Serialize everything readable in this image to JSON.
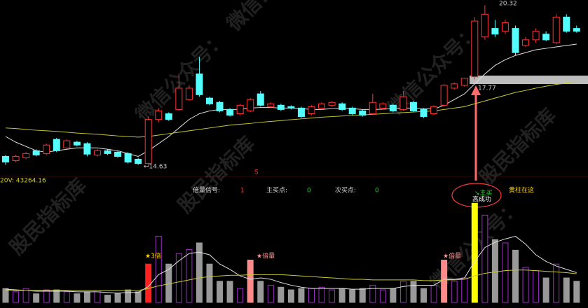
{
  "watermarks": [
    "股民指标库",
    "微信公众号："
  ],
  "callout": "黄柱在这",
  "marker": "S",
  "chart_data": [
    {
      "type": "candlestick",
      "ylim": [
        14.1,
        20.5
      ],
      "up_color": "#ff3333",
      "down_color": "#54ffff",
      "open": [
        15.0,
        14.85,
        14.95,
        15.2,
        15.1,
        15.6,
        15.3,
        15.5,
        15.45,
        15.05,
        15.2,
        15.15,
        15.1,
        14.9,
        14.75,
        16.3,
        16.5,
        16.65,
        17.0,
        17.9,
        17.05,
        16.9,
        16.65,
        16.5,
        16.6,
        17.2,
        16.75,
        16.8,
        16.75,
        16.7,
        16.5,
        16.7,
        16.8,
        16.85,
        16.7,
        16.6,
        16.5,
        16.7,
        16.8,
        16.65,
        16.9,
        16.65,
        16.5,
        16.8,
        17.4,
        17.5,
        17.8,
        19.2,
        19.5,
        19.4,
        19.5,
        18.9,
        19.1,
        19.3,
        19.0,
        19.9,
        19.5
      ],
      "high": [
        15.05,
        15.05,
        15.15,
        15.25,
        15.45,
        15.65,
        15.6,
        15.55,
        15.5,
        15.25,
        15.25,
        15.2,
        15.15,
        14.95,
        16.4,
        16.7,
        16.55,
        17.9,
        17.5,
        18.5,
        17.1,
        16.95,
        16.7,
        16.85,
        17.05,
        17.3,
        16.9,
        16.85,
        16.8,
        16.75,
        16.8,
        16.9,
        16.95,
        16.9,
        16.75,
        16.65,
        17.2,
        16.9,
        16.85,
        17.3,
        16.95,
        16.7,
        16.8,
        17.55,
        17.6,
        17.77,
        19.9,
        20.32,
        19.8,
        19.8,
        19.6,
        19.2,
        19.5,
        19.4,
        20.0,
        20.0,
        19.6
      ],
      "low": [
        14.7,
        14.8,
        14.9,
        15.0,
        15.05,
        15.15,
        15.25,
        15.35,
        15.0,
        15.0,
        15.05,
        14.95,
        14.75,
        14.7,
        14.63,
        16.2,
        16.25,
        16.6,
        16.95,
        17.1,
        16.8,
        16.55,
        16.4,
        16.45,
        16.55,
        16.75,
        16.7,
        16.6,
        16.65,
        16.35,
        16.45,
        16.65,
        16.75,
        16.6,
        16.45,
        16.4,
        16.45,
        16.65,
        16.55,
        16.6,
        16.55,
        16.35,
        16.45,
        16.75,
        17.35,
        17.45,
        17.7,
        19.1,
        19.2,
        19.3,
        18.55,
        18.85,
        19.0,
        19.05,
        18.95,
        19.35,
        19.35
      ],
      "close": [
        14.8,
        15.0,
        15.1,
        15.05,
        15.4,
        15.2,
        15.55,
        15.4,
        15.08,
        15.2,
        15.1,
        15.0,
        14.8,
        14.75,
        16.3,
        16.6,
        16.3,
        17.4,
        17.4,
        17.17,
        16.85,
        16.6,
        16.45,
        16.8,
        17.0,
        16.8,
        16.85,
        16.65,
        16.7,
        16.4,
        16.75,
        16.85,
        16.9,
        16.65,
        16.5,
        16.45,
        16.9,
        16.85,
        16.6,
        17.1,
        16.6,
        16.4,
        16.75,
        17.5,
        17.55,
        17.75,
        19.76,
        20.0,
        19.3,
        19.7,
        18.65,
        19.1,
        19.4,
        19.1,
        19.9,
        19.4,
        19.4
      ],
      "series": [
        {
          "color": "#e0e0e0",
          "values": [
            15.7,
            15.5,
            15.35,
            15.2,
            15.15,
            15.2,
            15.25,
            15.3,
            15.3,
            15.3,
            15.25,
            15.2,
            15.1,
            15.0,
            15.2,
            15.45,
            15.7,
            16.0,
            16.3,
            16.5,
            16.6,
            16.65,
            16.65,
            16.65,
            16.7,
            16.72,
            16.72,
            16.7,
            16.7,
            16.68,
            16.65,
            16.65,
            16.68,
            16.7,
            16.68,
            16.65,
            16.65,
            16.66,
            16.68,
            16.7,
            16.7,
            16.68,
            16.66,
            16.8,
            17.0,
            17.2,
            17.55,
            17.9,
            18.2,
            18.4,
            18.55,
            18.65,
            18.75,
            18.8,
            18.85,
            18.9,
            18.95
          ]
        },
        {
          "color": "#c8c832",
          "values": [
            16.0,
            15.98,
            15.95,
            15.92,
            15.9,
            15.88,
            15.85,
            15.82,
            15.8,
            15.78,
            15.75,
            15.72,
            15.7,
            15.68,
            15.7,
            15.75,
            15.8,
            15.85,
            15.9,
            15.95,
            16.0,
            16.05,
            16.1,
            16.13,
            16.16,
            16.2,
            16.23,
            16.26,
            16.29,
            16.32,
            16.35,
            16.38,
            16.4,
            16.42,
            16.44,
            16.46,
            16.48,
            16.5,
            16.52,
            16.54,
            16.56,
            16.58,
            16.6,
            16.65,
            16.7,
            16.75,
            16.85,
            16.95,
            17.05,
            17.15,
            17.25,
            17.32,
            17.4,
            17.47,
            17.53,
            17.58,
            17.62
          ]
        }
      ],
      "annotations": [
        {
          "text": "←14.63"
        },
        {
          "text": "20.32"
        },
        {
          "text": "17.77"
        }
      ]
    },
    {
      "type": "bar",
      "ylim": [
        0,
        180000
      ],
      "hollow_color": "#a02cc8",
      "ma_label": "20V: 43264.16",
      "values": [
        21000,
        16000,
        21000,
        13000,
        19000,
        19000,
        16000,
        13000,
        16000,
        18000,
        11000,
        14000,
        19000,
        16000,
        58000,
        100000,
        58000,
        74000,
        80000,
        90000,
        58000,
        32000,
        32000,
        21000,
        64000,
        32000,
        26000,
        23000,
        19000,
        21000,
        21000,
        23000,
        19000,
        21000,
        19000,
        21000,
        26000,
        19000,
        21000,
        32000,
        32000,
        21000,
        26000,
        64000,
        32000,
        37000,
        150000,
        132000,
        95000,
        90000,
        79000,
        53000,
        48000,
        37000,
        58000,
        37000,
        32000
      ],
      "colors": [
        "#999999",
        "#a02cc8",
        "#a02cc8",
        "#999999",
        "#a02cc8",
        "#999999",
        "#a02cc8",
        "#999999",
        "#999999",
        "#a02cc8",
        "#999999",
        "#999999",
        "#999999",
        "#999999",
        "#ff2020",
        "#a02cc8",
        "#999999",
        "#a02cc8",
        "#a02cc8",
        "#999999",
        "#999999",
        "#999999",
        "#999999",
        "#a02cc8",
        "#ff8a8a",
        "#999999",
        "#a02cc8",
        "#999999",
        "#999999",
        "#999999",
        "#a02cc8",
        "#a02cc8",
        "#a02cc8",
        "#999999",
        "#999999",
        "#999999",
        "#a02cc8",
        "#a02cc8",
        "#999999",
        "#a02cc8",
        "#999999",
        "#999999",
        "#a02cc8",
        "#ff8a8a",
        "#a02cc8",
        "#a02cc8",
        "#ffff00",
        "#a02cc8",
        "#999999",
        "#a02cc8",
        "#999999",
        "#a02cc8",
        "#a02cc8",
        "#999999",
        "#a02cc8",
        "#999999",
        "#999999"
      ],
      "series": [
        {
          "color": "#e0e0e0",
          "values": [
            20000,
            19000,
            18000,
            17000,
            17000,
            17000,
            17000,
            16000,
            16000,
            16000,
            15000,
            14000,
            15000,
            15000,
            24000,
            42000,
            50000,
            63000,
            74000,
            76000,
            72000,
            58000,
            50000,
            40000,
            35000,
            37000,
            35000,
            30000,
            26000,
            23000,
            21000,
            21000,
            21000,
            21000,
            20000,
            20000,
            21000,
            21000,
            21000,
            24000,
            26000,
            26000,
            26000,
            35000,
            35000,
            37000,
            62000,
            83000,
            91000,
            96000,
            100000,
            88000,
            72000,
            62000,
            55000,
            50000,
            45000
          ]
        },
        {
          "color": "#c8c832",
          "values": [
            18000,
            18000,
            18000,
            18000,
            18000,
            18000,
            18000,
            18000,
            18000,
            18000,
            18000,
            18000,
            18000,
            18000,
            21000,
            25000,
            28000,
            31000,
            34000,
            37000,
            39000,
            40000,
            41000,
            41000,
            42000,
            42000,
            42000,
            42000,
            41000,
            40000,
            39000,
            38000,
            37000,
            36000,
            35000,
            35000,
            34000,
            34000,
            34000,
            34000,
            34000,
            33000,
            33000,
            34000,
            34000,
            35000,
            40000,
            44000,
            46000,
            48000,
            49000,
            49000,
            48000,
            47000,
            46000,
            45000,
            43264.16
          ]
        }
      ],
      "signals": [
        {
          "label": "倍量信号:",
          "value": 1
        },
        {
          "label": "主买点:",
          "value": 0
        },
        {
          "label": "次买点:",
          "value": 0
        }
      ],
      "bar_labels": [
        {
          "text": "★3倍"
        },
        {
          "text": "★倍量"
        },
        {
          "text": "★倍量"
        },
        {
          "text": "↘主买"
        },
        {
          "text": "高成功"
        }
      ]
    }
  ]
}
